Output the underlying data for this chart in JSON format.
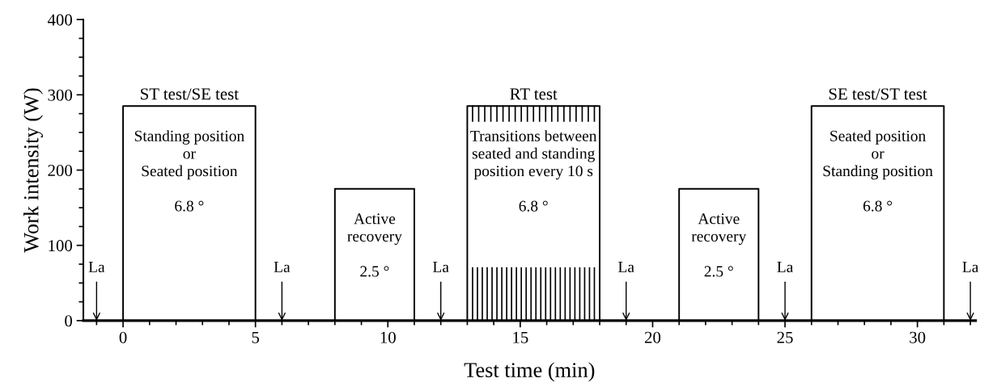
{
  "chart_data": {
    "type": "line",
    "xlabel": "Test time (min)",
    "ylabel": "Work intensity (W)",
    "x": [
      -1.5,
      0,
      0,
      5,
      5,
      8,
      8,
      11,
      11,
      13,
      13,
      18,
      18,
      21,
      21,
      24,
      24,
      26,
      26,
      31,
      31,
      32.2
    ],
    "series": [
      {
        "color": "#000000",
        "values": [
          0,
          0,
          285,
          285,
          0,
          0,
          175,
          175,
          0,
          0,
          285,
          285,
          0,
          0,
          175,
          175,
          0,
          0,
          285,
          285,
          0,
          0
        ]
      }
    ],
    "xlim": [
      -1.5,
      32.2
    ],
    "xticks": [
      0,
      5,
      10,
      15,
      20,
      25,
      30
    ],
    "ylim": [
      0,
      400
    ],
    "yticks": [
      0,
      100,
      200,
      300,
      400
    ],
    "marker": "none",
    "line_style": "solid",
    "grid": false,
    "annotations": [
      {
        "text": "ST test/SE test",
        "x": 2.5,
        "y": 285
      },
      "Standing position\nor\nSeated position\n\n6.8 °",
      "Active\nrecovery\n\n2.5 °",
      {
        "text": "RT test",
        "x": 15.5,
        "y": 285
      },
      "Transitions between\nseated and standing\nposition every 10 s\n\n6.8 °",
      "Active\nrecovery\n\n2.5 °",
      {
        "text": "SE test/ST test",
        "x": 28.5,
        "y": 285
      },
      "Seated position\nor\nStanding position\n\n6.8 °",
      {
        "text": "La",
        "x": -1,
        "y": 0
      },
      {
        "text": "La",
        "x": 6,
        "y": 0
      },
      {
        "text": "La",
        "x": 12,
        "y": 0
      },
      {
        "text": "La",
        "x": 19,
        "y": 0
      },
      {
        "text": "La",
        "x": 25,
        "y": 0
      },
      {
        "text": "La",
        "x": 32,
        "y": 0
      }
    ]
  }
}
